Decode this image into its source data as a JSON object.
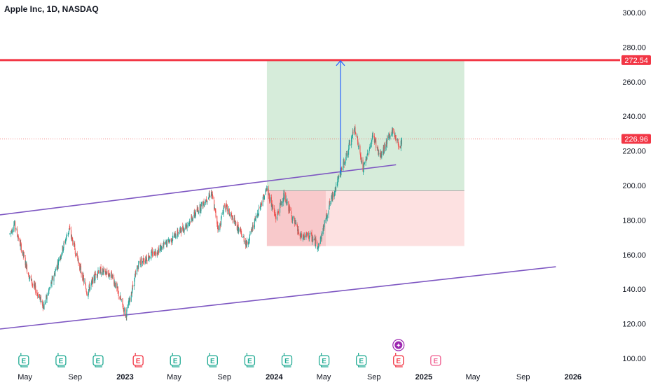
{
  "header": {
    "title": "Apple Inc, 1D, NASDAQ"
  },
  "colors": {
    "up": "#26a69a",
    "down": "#ef5350",
    "channel": "#7e57c2",
    "resistance": "#f23645",
    "target_zone": "#d6ecda",
    "stop_zone": "#fde1e1",
    "stop_zone_dark": "#f8c9cb",
    "arrow": "#2962ff",
    "earnings_past": "#22ab94",
    "earnings_recent": "#f23645",
    "earnings_future": "#f06292",
    "dividend": "#9c27b0"
  },
  "chart_data": {
    "type": "candlestick",
    "title": "Apple Inc, 1D, NASDAQ",
    "ylim": [
      100,
      300
    ],
    "y_ticks": [
      100,
      120,
      140,
      160,
      180,
      200,
      220,
      240,
      260,
      280,
      300
    ],
    "y_tick_labels": [
      "100.00",
      "120.00",
      "140.00",
      "160.00",
      "180.00",
      "200.00",
      "220.00",
      "240.00",
      "260.00",
      "280.00",
      "300.00"
    ],
    "x_ticks": [
      {
        "date": "2022-05-01",
        "label": "May",
        "bold": false
      },
      {
        "date": "2022-09-01",
        "label": "Sep",
        "bold": false
      },
      {
        "date": "2023-01-01",
        "label": "2023",
        "bold": true
      },
      {
        "date": "2023-05-01",
        "label": "May",
        "bold": false
      },
      {
        "date": "2023-09-01",
        "label": "Sep",
        "bold": false
      },
      {
        "date": "2024-01-01",
        "label": "2024",
        "bold": true
      },
      {
        "date": "2024-05-01",
        "label": "May",
        "bold": false
      },
      {
        "date": "2024-09-01",
        "label": "Sep",
        "bold": false
      },
      {
        "date": "2025-01-01",
        "label": "2025",
        "bold": true
      },
      {
        "date": "2025-05-01",
        "label": "May",
        "bold": false
      },
      {
        "date": "2025-09-01",
        "label": "Sep",
        "bold": false
      },
      {
        "date": "2026-01-01",
        "label": "2026",
        "bold": true
      }
    ],
    "price_path": [
      {
        "date": "2022-03-25",
        "close": 172
      },
      {
        "date": "2022-04-05",
        "close": 178
      },
      {
        "date": "2022-05-12",
        "close": 147
      },
      {
        "date": "2022-06-16",
        "close": 130
      },
      {
        "date": "2022-08-17",
        "close": 175
      },
      {
        "date": "2022-09-30",
        "close": 138
      },
      {
        "date": "2022-10-27",
        "close": 151
      },
      {
        "date": "2022-11-30",
        "close": 148
      },
      {
        "date": "2023-01-03",
        "close": 125
      },
      {
        "date": "2023-02-03",
        "close": 155
      },
      {
        "date": "2023-03-31",
        "close": 164
      },
      {
        "date": "2023-05-31",
        "close": 177
      },
      {
        "date": "2023-07-31",
        "close": 196
      },
      {
        "date": "2023-08-18",
        "close": 174
      },
      {
        "date": "2023-09-01",
        "close": 189
      },
      {
        "date": "2023-10-26",
        "close": 166
      },
      {
        "date": "2023-11-30",
        "close": 190
      },
      {
        "date": "2023-12-14",
        "close": 198
      },
      {
        "date": "2024-01-05",
        "close": 181
      },
      {
        "date": "2024-01-24",
        "close": 194
      },
      {
        "date": "2024-03-05",
        "close": 170
      },
      {
        "date": "2024-03-28",
        "close": 171
      },
      {
        "date": "2024-04-19",
        "close": 165
      },
      {
        "date": "2024-05-15",
        "close": 189
      },
      {
        "date": "2024-06-11",
        "close": 207
      },
      {
        "date": "2024-07-12",
        "close": 230
      },
      {
        "date": "2024-07-16",
        "close": 234
      },
      {
        "date": "2024-08-05",
        "close": 209
      },
      {
        "date": "2024-08-30",
        "close": 229
      },
      {
        "date": "2024-09-16",
        "close": 216
      },
      {
        "date": "2024-10-04",
        "close": 226
      },
      {
        "date": "2024-10-16",
        "close": 232
      },
      {
        "date": "2024-11-04",
        "close": 222
      },
      {
        "date": "2024-11-08",
        "close": 226.96
      }
    ],
    "last_price": 226.96,
    "last_price_label": "226.96",
    "resistance_level": 272.54,
    "resistance_label": "272.54",
    "long_position": {
      "start": "2023-12-14",
      "end": "2025-04-10",
      "entry": 197,
      "target": 272.54,
      "stop": 165,
      "filled_start": "2023-12-14",
      "filled_end": "2024-05-06"
    },
    "target_arrow": {
      "date": "2024-06-11",
      "from": 207,
      "to": 272.54
    },
    "channel": {
      "upper": {
        "from": {
          "date": "2022-03-01",
          "price": 183
        },
        "to": {
          "date": "2024-10-25",
          "price": 212
        }
      },
      "lower": {
        "from": {
          "date": "2022-03-01",
          "price": 117
        },
        "to": {
          "date": "2025-11-20",
          "price": 153
        }
      }
    },
    "events": [
      {
        "date": "2022-04-28",
        "kind": "earnings",
        "label": "E",
        "state": "past"
      },
      {
        "date": "2022-07-28",
        "kind": "earnings",
        "label": "E",
        "state": "past"
      },
      {
        "date": "2022-10-27",
        "kind": "earnings",
        "label": "E",
        "state": "past"
      },
      {
        "date": "2023-02-02",
        "kind": "earnings",
        "label": "E",
        "state": "miss"
      },
      {
        "date": "2023-05-04",
        "kind": "earnings",
        "label": "E",
        "state": "past"
      },
      {
        "date": "2023-08-03",
        "kind": "earnings",
        "label": "E",
        "state": "past"
      },
      {
        "date": "2023-11-02",
        "kind": "earnings",
        "label": "E",
        "state": "past"
      },
      {
        "date": "2024-02-01",
        "kind": "earnings",
        "label": "E",
        "state": "past"
      },
      {
        "date": "2024-05-02",
        "kind": "earnings",
        "label": "E",
        "state": "past"
      },
      {
        "date": "2024-08-01",
        "kind": "earnings",
        "label": "E",
        "state": "past"
      },
      {
        "date": "2024-10-31",
        "kind": "earnings",
        "label": "E",
        "state": "miss"
      },
      {
        "date": "2025-01-30",
        "kind": "earnings",
        "label": "E",
        "state": "future"
      },
      {
        "date": "2024-10-31",
        "kind": "dividend",
        "label": "✦",
        "state": "upcoming"
      }
    ]
  }
}
